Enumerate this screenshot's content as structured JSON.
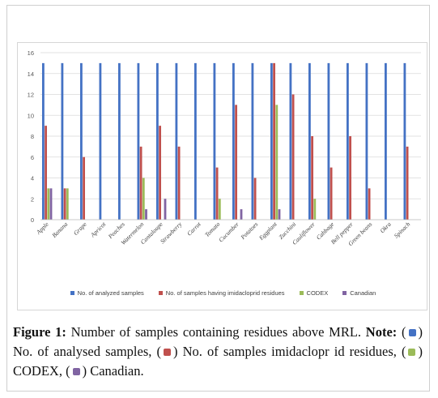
{
  "chart_data": {
    "type": "bar",
    "categories": [
      "Apple",
      "Banana",
      "Grape",
      "Apricot",
      "Peaches",
      "Watermelon",
      "Cantaloupe",
      "Strawberry",
      "Carrot",
      "Tomato",
      "Cucumber",
      "Potatoes",
      "Eggplant",
      "Zucchini",
      "Cauliflower",
      "Cabbage",
      "Bell pepper",
      "Green beans",
      "Okra",
      "Spinach"
    ],
    "series": [
      {
        "name": "No. of analyzed samples",
        "color": "#4472C4",
        "values": [
          15,
          15,
          15,
          15,
          15,
          15,
          15,
          15,
          15,
          15,
          15,
          15,
          15,
          15,
          15,
          15,
          15,
          15,
          15,
          15
        ]
      },
      {
        "name": "No. of samples having imidacloprid residues",
        "color": "#C0504D",
        "values": [
          9,
          3,
          6,
          0,
          0,
          7,
          9,
          7,
          0,
          5,
          11,
          4,
          15,
          12,
          8,
          5,
          8,
          3,
          0,
          7
        ]
      },
      {
        "name": "CODEX",
        "color": "#9BBB59",
        "values": [
          3,
          3,
          0,
          0,
          0,
          4,
          0,
          0,
          0,
          2,
          0,
          0,
          11,
          0,
          2,
          0,
          0,
          0,
          0,
          0
        ]
      },
      {
        "name": "Canadian",
        "color": "#8064A2",
        "values": [
          3,
          0,
          0,
          0,
          0,
          1,
          2,
          0,
          0,
          0,
          1,
          0,
          1,
          0,
          0,
          0,
          0,
          0,
          0,
          0
        ]
      }
    ],
    "yticks": [
      0,
      2,
      4,
      6,
      8,
      10,
      12,
      14,
      16
    ],
    "ylim": [
      0,
      16
    ],
    "grid": true,
    "legend": "bottom"
  },
  "caption": {
    "figure_label": "Figure 1:",
    "title_text": " Number of samples containing residues above MRL. ",
    "note_label": "Note:",
    "part1": " (",
    "part2": ") No. of analysed samples, (",
    "part3": ") No. of samples imidaclopr id residues, (",
    "part4": ") CODEX, (",
    "part5": ") Canadian."
  }
}
